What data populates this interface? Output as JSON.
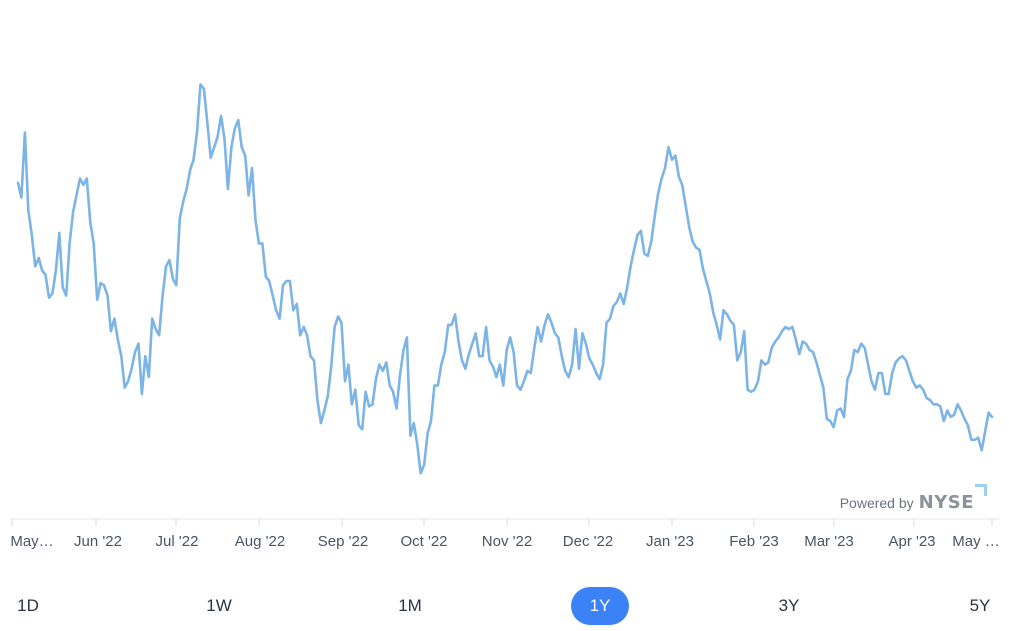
{
  "chart_data": {
    "type": "line",
    "x_labels": [
      "May…",
      "Jun '22",
      "Jul '22",
      "Aug '22",
      "Sep '22",
      "Oct '22",
      "Nov '22",
      "Dec '22",
      "Jan '23",
      "Feb '23",
      "Mar '23",
      "Apr '23",
      "May …"
    ],
    "series": [
      {
        "color": "#7db4e6",
        "points": [
          [
            0,
            0.735
          ],
          [
            1,
            0.7
          ],
          [
            2,
            0.855
          ],
          [
            3,
            0.67
          ],
          [
            4,
            0.61
          ],
          [
            5,
            0.535
          ],
          [
            6,
            0.555
          ],
          [
            7,
            0.525
          ],
          [
            8,
            0.515
          ],
          [
            9,
            0.46
          ],
          [
            10,
            0.47
          ],
          [
            11,
            0.525
          ],
          [
            12,
            0.615
          ],
          [
            13,
            0.485
          ],
          [
            14,
            0.465
          ],
          [
            15,
            0.59
          ],
          [
            16,
            0.665
          ],
          [
            17,
            0.705
          ],
          [
            18,
            0.745
          ],
          [
            19,
            0.73
          ],
          [
            20,
            0.745
          ],
          [
            21,
            0.64
          ],
          [
            22,
            0.59
          ],
          [
            23,
            0.455
          ],
          [
            24,
            0.495
          ],
          [
            25,
            0.49
          ],
          [
            26,
            0.465
          ],
          [
            27,
            0.38
          ],
          [
            28,
            0.41
          ],
          [
            29,
            0.36
          ],
          [
            30,
            0.32
          ],
          [
            31,
            0.245
          ],
          [
            32,
            0.26
          ],
          [
            33,
            0.29
          ],
          [
            34,
            0.33
          ],
          [
            35,
            0.35
          ],
          [
            36,
            0.23
          ],
          [
            37,
            0.32
          ],
          [
            38,
            0.27
          ],
          [
            39,
            0.41
          ],
          [
            40,
            0.385
          ],
          [
            41,
            0.37
          ],
          [
            42,
            0.465
          ],
          [
            43,
            0.535
          ],
          [
            44,
            0.55
          ],
          [
            45,
            0.505
          ],
          [
            46,
            0.49
          ],
          [
            47,
            0.65
          ],
          [
            48,
            0.69
          ],
          [
            49,
            0.72
          ],
          [
            50,
            0.765
          ],
          [
            51,
            0.79
          ],
          [
            52,
            0.855
          ],
          [
            53,
            0.97
          ],
          [
            54,
            0.96
          ],
          [
            55,
            0.88
          ],
          [
            56,
            0.795
          ],
          [
            57,
            0.82
          ],
          [
            58,
            0.845
          ],
          [
            59,
            0.895
          ],
          [
            60,
            0.84
          ],
          [
            61,
            0.72
          ],
          [
            62,
            0.82
          ],
          [
            63,
            0.865
          ],
          [
            64,
            0.885
          ],
          [
            65,
            0.82
          ],
          [
            66,
            0.8
          ],
          [
            67,
            0.705
          ],
          [
            68,
            0.77
          ],
          [
            69,
            0.645
          ],
          [
            70,
            0.59
          ],
          [
            71,
            0.59
          ],
          [
            72,
            0.51
          ],
          [
            73,
            0.5
          ],
          [
            74,
            0.465
          ],
          [
            75,
            0.43
          ],
          [
            76,
            0.41
          ],
          [
            77,
            0.49
          ],
          [
            78,
            0.5
          ],
          [
            79,
            0.5
          ],
          [
            80,
            0.43
          ],
          [
            81,
            0.445
          ],
          [
            82,
            0.37
          ],
          [
            83,
            0.39
          ],
          [
            84,
            0.37
          ],
          [
            85,
            0.32
          ],
          [
            86,
            0.31
          ],
          [
            87,
            0.215
          ],
          [
            88,
            0.16
          ],
          [
            89,
            0.19
          ],
          [
            90,
            0.225
          ],
          [
            91,
            0.295
          ],
          [
            92,
            0.39
          ],
          [
            93,
            0.415
          ],
          [
            94,
            0.4
          ],
          [
            95,
            0.26
          ],
          [
            96,
            0.3
          ],
          [
            97,
            0.205
          ],
          [
            98,
            0.24
          ],
          [
            99,
            0.155
          ],
          [
            100,
            0.145
          ],
          [
            101,
            0.235
          ],
          [
            102,
            0.2
          ],
          [
            103,
            0.205
          ],
          [
            104,
            0.265
          ],
          [
            105,
            0.3
          ],
          [
            106,
            0.285
          ],
          [
            107,
            0.305
          ],
          [
            108,
            0.25
          ],
          [
            109,
            0.235
          ],
          [
            110,
            0.195
          ],
          [
            111,
            0.275
          ],
          [
            112,
            0.335
          ],
          [
            113,
            0.365
          ],
          [
            114,
            0.13
          ],
          [
            115,
            0.16
          ],
          [
            116,
            0.11
          ],
          [
            117,
            0.04
          ],
          [
            118,
            0.06
          ],
          [
            119,
            0.135
          ],
          [
            120,
            0.165
          ],
          [
            121,
            0.25
          ],
          [
            122,
            0.25
          ],
          [
            123,
            0.3
          ],
          [
            124,
            0.33
          ],
          [
            125,
            0.395
          ],
          [
            126,
            0.395
          ],
          [
            127,
            0.42
          ],
          [
            128,
            0.355
          ],
          [
            129,
            0.31
          ],
          [
            130,
            0.29
          ],
          [
            131,
            0.325
          ],
          [
            132,
            0.35
          ],
          [
            133,
            0.375
          ],
          [
            134,
            0.32
          ],
          [
            135,
            0.32
          ],
          [
            136,
            0.39
          ],
          [
            137,
            0.31
          ],
          [
            138,
            0.295
          ],
          [
            139,
            0.27
          ],
          [
            140,
            0.3
          ],
          [
            141,
            0.25
          ],
          [
            142,
            0.335
          ],
          [
            143,
            0.365
          ],
          [
            144,
            0.33
          ],
          [
            145,
            0.25
          ],
          [
            146,
            0.24
          ],
          [
            147,
            0.26
          ],
          [
            148,
            0.285
          ],
          [
            149,
            0.28
          ],
          [
            150,
            0.34
          ],
          [
            151,
            0.39
          ],
          [
            152,
            0.355
          ],
          [
            153,
            0.395
          ],
          [
            154,
            0.42
          ],
          [
            155,
            0.4
          ],
          [
            156,
            0.375
          ],
          [
            157,
            0.365
          ],
          [
            158,
            0.32
          ],
          [
            159,
            0.285
          ],
          [
            160,
            0.27
          ],
          [
            161,
            0.3
          ],
          [
            162,
            0.385
          ],
          [
            163,
            0.29
          ],
          [
            164,
            0.375
          ],
          [
            165,
            0.35
          ],
          [
            166,
            0.315
          ],
          [
            167,
            0.3
          ],
          [
            168,
            0.28
          ],
          [
            169,
            0.265
          ],
          [
            170,
            0.3
          ],
          [
            171,
            0.4
          ],
          [
            172,
            0.41
          ],
          [
            173,
            0.44
          ],
          [
            174,
            0.45
          ],
          [
            175,
            0.47
          ],
          [
            176,
            0.445
          ],
          [
            177,
            0.485
          ],
          [
            178,
            0.535
          ],
          [
            179,
            0.575
          ],
          [
            180,
            0.61
          ],
          [
            181,
            0.62
          ],
          [
            182,
            0.565
          ],
          [
            183,
            0.56
          ],
          [
            184,
            0.595
          ],
          [
            185,
            0.655
          ],
          [
            186,
            0.71
          ],
          [
            187,
            0.745
          ],
          [
            188,
            0.77
          ],
          [
            189,
            0.82
          ],
          [
            190,
            0.79
          ],
          [
            191,
            0.8
          ],
          [
            192,
            0.75
          ],
          [
            193,
            0.73
          ],
          [
            194,
            0.68
          ],
          [
            195,
            0.63
          ],
          [
            196,
            0.595
          ],
          [
            197,
            0.58
          ],
          [
            198,
            0.575
          ],
          [
            199,
            0.53
          ],
          [
            200,
            0.5
          ],
          [
            201,
            0.47
          ],
          [
            202,
            0.425
          ],
          [
            203,
            0.395
          ],
          [
            204,
            0.36
          ],
          [
            205,
            0.43
          ],
          [
            206,
            0.42
          ],
          [
            207,
            0.405
          ],
          [
            208,
            0.395
          ],
          [
            209,
            0.31
          ],
          [
            210,
            0.33
          ],
          [
            211,
            0.38
          ],
          [
            212,
            0.24
          ],
          [
            213,
            0.235
          ],
          [
            214,
            0.24
          ],
          [
            215,
            0.26
          ],
          [
            216,
            0.31
          ],
          [
            217,
            0.3
          ],
          [
            218,
            0.305
          ],
          [
            219,
            0.34
          ],
          [
            220,
            0.355
          ],
          [
            221,
            0.365
          ],
          [
            222,
            0.38
          ],
          [
            223,
            0.39
          ],
          [
            224,
            0.385
          ],
          [
            225,
            0.39
          ],
          [
            226,
            0.36
          ],
          [
            227,
            0.325
          ],
          [
            228,
            0.355
          ],
          [
            229,
            0.35
          ],
          [
            230,
            0.335
          ],
          [
            231,
            0.33
          ],
          [
            232,
            0.305
          ],
          [
            233,
            0.275
          ],
          [
            234,
            0.245
          ],
          [
            235,
            0.17
          ],
          [
            236,
            0.165
          ],
          [
            237,
            0.15
          ],
          [
            238,
            0.19
          ],
          [
            239,
            0.195
          ],
          [
            240,
            0.175
          ],
          [
            241,
            0.265
          ],
          [
            242,
            0.285
          ],
          [
            243,
            0.335
          ],
          [
            244,
            0.33
          ],
          [
            245,
            0.35
          ],
          [
            246,
            0.34
          ],
          [
            247,
            0.3
          ],
          [
            248,
            0.26
          ],
          [
            249,
            0.24
          ],
          [
            250,
            0.28
          ],
          [
            251,
            0.28
          ],
          [
            252,
            0.23
          ],
          [
            253,
            0.23
          ],
          [
            254,
            0.28
          ],
          [
            255,
            0.305
          ],
          [
            256,
            0.315
          ],
          [
            257,
            0.32
          ],
          [
            258,
            0.31
          ],
          [
            259,
            0.285
          ],
          [
            260,
            0.26
          ],
          [
            261,
            0.245
          ],
          [
            262,
            0.25
          ],
          [
            263,
            0.24
          ],
          [
            264,
            0.22
          ],
          [
            265,
            0.215
          ],
          [
            266,
            0.205
          ],
          [
            267,
            0.205
          ],
          [
            268,
            0.2
          ],
          [
            269,
            0.165
          ],
          [
            270,
            0.19
          ],
          [
            271,
            0.175
          ],
          [
            272,
            0.18
          ],
          [
            273,
            0.205
          ],
          [
            274,
            0.19
          ],
          [
            275,
            0.17
          ],
          [
            276,
            0.155
          ],
          [
            277,
            0.12
          ],
          [
            278,
            0.12
          ],
          [
            279,
            0.125
          ],
          [
            280,
            0.095
          ],
          [
            281,
            0.14
          ],
          [
            282,
            0.185
          ],
          [
            283,
            0.175
          ]
        ]
      }
    ],
    "ylim": [
      0,
      1
    ],
    "grid": false
  },
  "attribution": {
    "prefix": "Powered by",
    "brand": "NYSE"
  },
  "range_selector": {
    "options": [
      {
        "label": "1D",
        "active": false
      },
      {
        "label": "1W",
        "active": false
      },
      {
        "label": "1M",
        "active": false
      },
      {
        "label": "1Y",
        "active": true
      },
      {
        "label": "3Y",
        "active": false
      },
      {
        "label": "5Y",
        "active": false
      }
    ]
  }
}
